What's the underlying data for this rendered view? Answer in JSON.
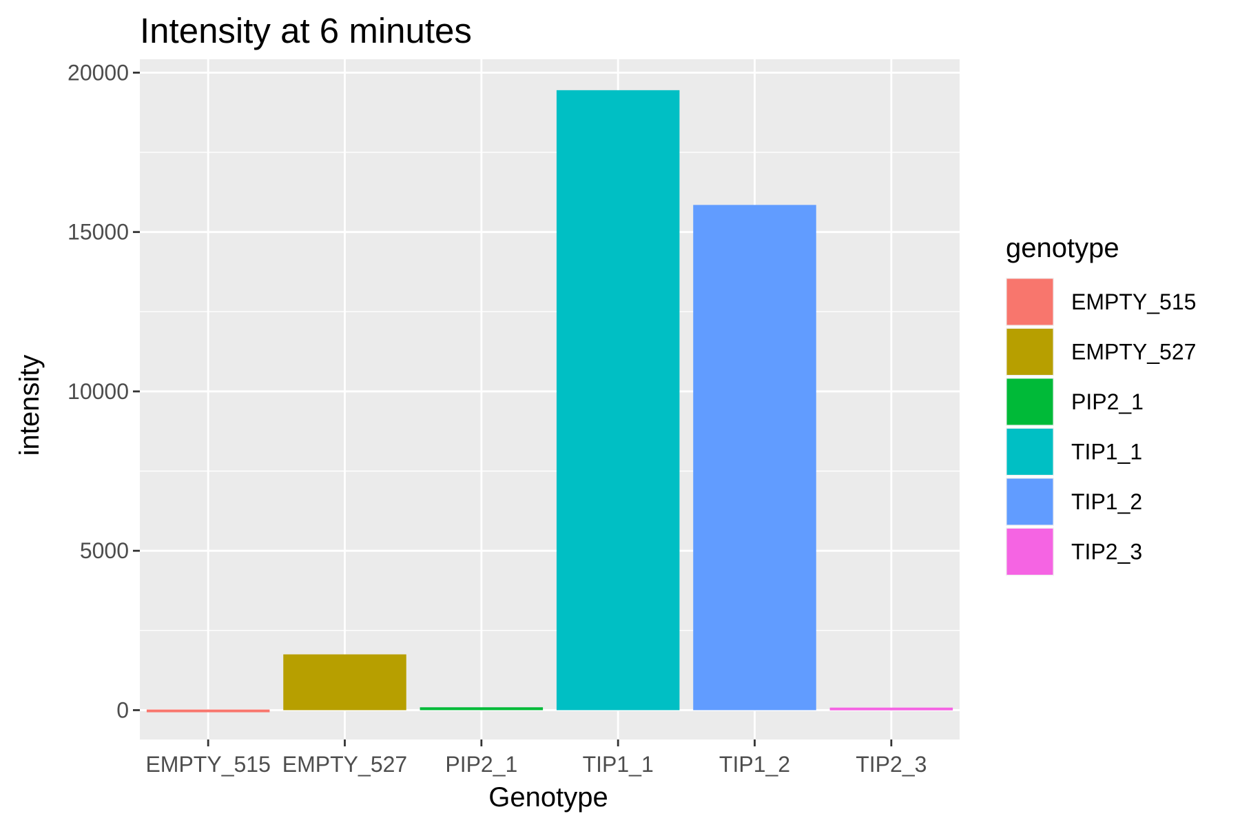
{
  "chart_data": {
    "type": "bar",
    "title": "Intensity at 6 minutes",
    "xlabel": "Genotype",
    "ylabel": "intensity",
    "categories": [
      "EMPTY_515",
      "EMPTY_527",
      "PIP2_1",
      "TIP1_1",
      "TIP1_2",
      "TIP2_3"
    ],
    "values": [
      20,
      1750,
      90,
      19450,
      15850,
      80
    ],
    "colors": [
      "#F8766D",
      "#B79F00",
      "#00BA38",
      "#00BFC4",
      "#619CFF",
      "#F564E3"
    ],
    "ylim": [
      -920,
      20420
    ],
    "yticks": [
      0,
      5000,
      10000,
      15000,
      20000
    ],
    "ytick_labels": [
      "0",
      "5000",
      "10000",
      "15000",
      "20000"
    ],
    "grid": true,
    "legend": {
      "title": "genotype",
      "position": "right",
      "entries": [
        "EMPTY_515",
        "EMPTY_527",
        "PIP2_1",
        "TIP1_1",
        "TIP1_2",
        "TIP2_3"
      ]
    },
    "panel_background": "#EBEBEB"
  }
}
